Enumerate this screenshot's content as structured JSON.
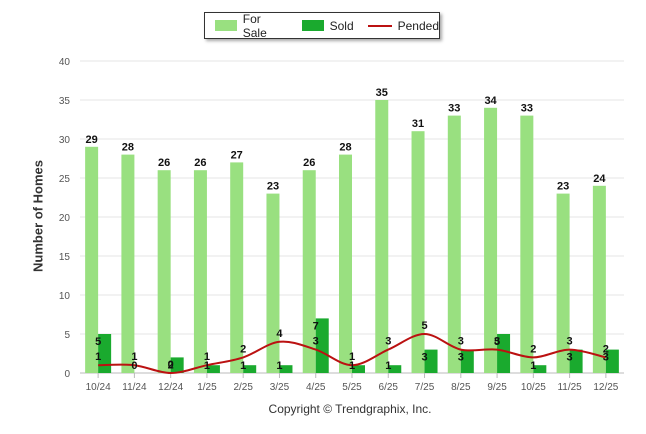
{
  "chart_data": {
    "type": "bar",
    "title": "",
    "xlabel": "",
    "ylabel": "Number of Homes",
    "ylim": [
      0,
      40
    ],
    "yticks": [
      0,
      5,
      10,
      15,
      20,
      25,
      30,
      35,
      40
    ],
    "categories": [
      "10/24",
      "11/24",
      "12/24",
      "1/25",
      "2/25",
      "3/25",
      "4/25",
      "5/25",
      "6/25",
      "7/25",
      "8/25",
      "9/25",
      "10/25",
      "11/25",
      "12/25"
    ],
    "series": [
      {
        "name": "For Sale",
        "kind": "bar",
        "color": "#99e080",
        "values": [
          29,
          28,
          26,
          26,
          27,
          23,
          26,
          28,
          35,
          31,
          33,
          34,
          33,
          23,
          24
        ]
      },
      {
        "name": "Sold",
        "kind": "bar",
        "color": "#1aaa2e",
        "values": [
          5,
          0,
          2,
          1,
          1,
          1,
          7,
          1,
          1,
          3,
          3,
          5,
          1,
          3,
          3
        ]
      },
      {
        "name": "Pended",
        "kind": "line",
        "color": "#bb1111",
        "values": [
          1,
          1,
          0,
          1,
          2,
          4,
          3,
          1,
          3,
          5,
          3,
          3,
          2,
          3,
          2
        ]
      }
    ],
    "legend": "top-center"
  },
  "footer": {
    "copyright": "Copyright © Trendgraphix, Inc."
  }
}
